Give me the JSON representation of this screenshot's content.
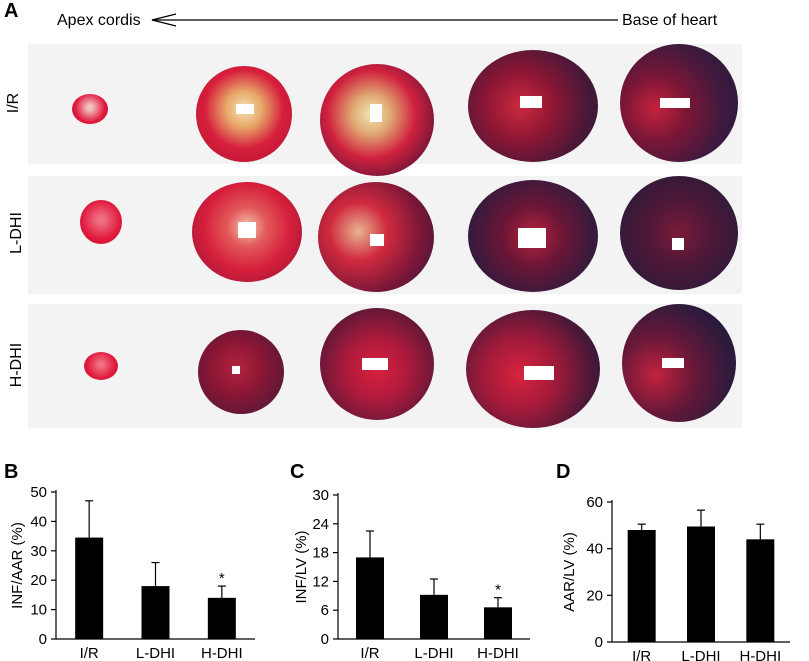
{
  "figure": {
    "panel_A": {
      "letter": "A",
      "apex_label": "Apex cordis",
      "base_label": "Base of heart",
      "rows": [
        {
          "label": "I/R"
        },
        {
          "label": "L-DHI"
        },
        {
          "label": "H-DHI"
        }
      ]
    }
  },
  "chart_data": [
    {
      "type": "bar",
      "panel": "B",
      "categories": [
        "I/R",
        "L-DHI",
        "H-DHI"
      ],
      "values": [
        34.5,
        18.0,
        14.0
      ],
      "errors": [
        12.5,
        8.0,
        4.0
      ],
      "significance": [
        "",
        "",
        "*"
      ],
      "ylabel": "INF/AAR (%)",
      "ylim": [
        0,
        50
      ],
      "yticks": [
        0,
        10,
        20,
        30,
        40,
        50
      ],
      "bar_color": "#000000"
    },
    {
      "type": "bar",
      "panel": "C",
      "categories": [
        "I/R",
        "L-DHI",
        "H-DHI"
      ],
      "values": [
        17.0,
        9.2,
        6.6
      ],
      "errors": [
        5.5,
        3.3,
        2.0
      ],
      "significance": [
        "",
        "",
        "*"
      ],
      "ylabel": "INF/LV (%)",
      "ylim": [
        0,
        30
      ],
      "yticks": [
        0,
        6,
        12,
        18,
        24,
        30
      ],
      "bar_color": "#000000"
    },
    {
      "type": "bar",
      "panel": "D",
      "categories": [
        "I/R",
        "L-DHI",
        "H-DHI"
      ],
      "values": [
        48.0,
        49.5,
        44.0
      ],
      "errors": [
        2.5,
        7.0,
        6.5
      ],
      "significance": [
        "",
        "",
        ""
      ],
      "ylabel": "AAR/LV (%)",
      "ylim": [
        0,
        60
      ],
      "yticks": [
        0,
        20,
        40,
        60
      ],
      "bar_color": "#000000"
    }
  ]
}
